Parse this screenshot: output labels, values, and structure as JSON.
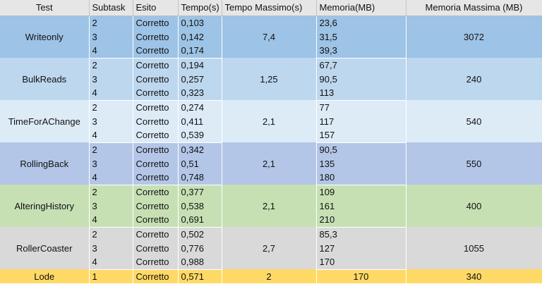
{
  "headers": {
    "test": "Test",
    "subtask": "Subtask",
    "esito": "Esito",
    "tempo": "Tempo(s)",
    "tempo_max": "Tempo Massimo(s)",
    "memoria": "Memoria(MB)",
    "memoria_max": "Memoria Massima (MB)"
  },
  "groups": [
    {
      "name": "Writeonly",
      "color": "#9dc3e6",
      "tempo_max": "7,4",
      "memoria_max": "3072",
      "rows": [
        {
          "subtask": "2",
          "esito": "Corretto",
          "tempo": "0,103",
          "memoria": "23,6"
        },
        {
          "subtask": "3",
          "esito": "Corretto",
          "tempo": "0,142",
          "memoria": "31,5"
        },
        {
          "subtask": "4",
          "esito": "Corretto",
          "tempo": "0,174",
          "memoria": "39,3"
        }
      ]
    },
    {
      "name": "BulkReads",
      "color": "#bdd7ee",
      "tempo_max": "1,25",
      "memoria_max": "240",
      "rows": [
        {
          "subtask": "2",
          "esito": "Corretto",
          "tempo": "0,194",
          "memoria": "67,7"
        },
        {
          "subtask": "3",
          "esito": "Corretto",
          "tempo": "0,257",
          "memoria": "90,5"
        },
        {
          "subtask": "4",
          "esito": "Corretto",
          "tempo": "0,323",
          "memoria": "113"
        }
      ]
    },
    {
      "name": "TimeForAChange",
      "color": "#ddebf7",
      "tempo_max": "2,1",
      "memoria_max": "540",
      "rows": [
        {
          "subtask": "2",
          "esito": "Corretto",
          "tempo": "0,274",
          "memoria": "77"
        },
        {
          "subtask": "3",
          "esito": "Corretto",
          "tempo": "0,411",
          "memoria": "117"
        },
        {
          "subtask": "4",
          "esito": "Corretto",
          "tempo": "0,539",
          "memoria": "157"
        }
      ]
    },
    {
      "name": "RollingBack",
      "color": "#b4c6e7",
      "tempo_max": "2,1",
      "memoria_max": "550",
      "rows": [
        {
          "subtask": "2",
          "esito": "Corretto",
          "tempo": "0,342",
          "memoria": "90,5"
        },
        {
          "subtask": "3",
          "esito": "Corretto",
          "tempo": "0,51",
          "memoria": "135"
        },
        {
          "subtask": "4",
          "esito": "Corretto",
          "tempo": "0,748",
          "memoria": "180"
        }
      ]
    },
    {
      "name": "AlteringHistory",
      "color": "#c6e0b4",
      "tempo_max": "2,1",
      "memoria_max": "400",
      "rows": [
        {
          "subtask": "2",
          "esito": "Corretto",
          "tempo": "0,377",
          "memoria": "109"
        },
        {
          "subtask": "3",
          "esito": "Corretto",
          "tempo": "0,538",
          "memoria": "161"
        },
        {
          "subtask": "4",
          "esito": "Corretto",
          "tempo": "0,691",
          "memoria": "210"
        }
      ]
    },
    {
      "name": "RollerCoaster",
      "color": "#d9d9d9",
      "tempo_max": "2,7",
      "memoria_max": "1055",
      "rows": [
        {
          "subtask": "2",
          "esito": "Corretto",
          "tempo": "0,502",
          "memoria": "85,3"
        },
        {
          "subtask": "3",
          "esito": "Corretto",
          "tempo": "0,776",
          "memoria": "127"
        },
        {
          "subtask": "4",
          "esito": "Corretto",
          "tempo": "0,988",
          "memoria": "170"
        }
      ]
    }
  ],
  "lode": {
    "name": "Lode",
    "color": "#ffd966",
    "subtask": "1",
    "esito": "Corretto",
    "tempo": "0,571",
    "tempo_max": "2",
    "memoria": "170",
    "memoria_max": "340"
  }
}
